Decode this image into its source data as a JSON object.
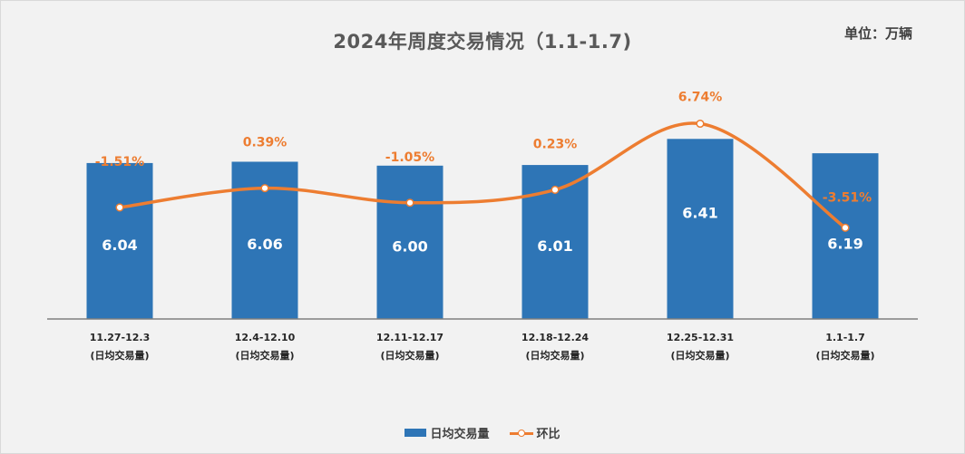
{
  "title": "2024年周度交易情况（1.1-1.7)",
  "unit": "单位：万辆",
  "legend": {
    "bar_label": "日均交易量",
    "line_label": "环比"
  },
  "colors": {
    "bar": "#2e75b6",
    "line": "#ed7d31",
    "percent_text": "#ed7d31",
    "bar_value_text": "#ffffff",
    "axis": "#7f7f7f"
  },
  "chart_data": {
    "type": "bar",
    "categories": [
      [
        "11.27-12.3",
        "(日均交易量)"
      ],
      [
        "12.4-12.10",
        "(日均交易量)"
      ],
      [
        "12.11-12.17",
        "(日均交易量)"
      ],
      [
        "12.18-12.24",
        "(日均交易量)"
      ],
      [
        "12.25-12.31",
        "(日均交易量)"
      ],
      [
        "1.1-1.7",
        "(日均交易量)"
      ]
    ],
    "series": [
      {
        "name": "日均交易量",
        "type": "bar",
        "axis": "left",
        "values": [
          6.04,
          6.06,
          6.0,
          6.01,
          6.41,
          6.19
        ],
        "labels": [
          "6.04",
          "6.06",
          "6.00",
          "6.01",
          "6.41",
          "6.19"
        ]
      },
      {
        "name": "环比",
        "type": "line",
        "smooth": true,
        "axis": "right",
        "values": [
          -1.51,
          0.39,
          -1.05,
          0.23,
          6.74,
          -3.51
        ],
        "labels": [
          "-1.51%",
          "0.39%",
          "-1.05%",
          "0.23%",
          "6.74%",
          "-3.51%"
        ]
      }
    ],
    "legend_position": "bottom",
    "grid": false
  }
}
